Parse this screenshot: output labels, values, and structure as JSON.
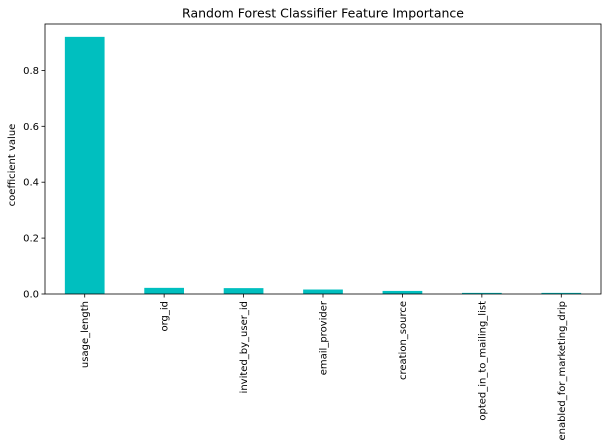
{
  "chart_data": {
    "type": "bar",
    "title": "Random Forest Classifier Feature Importance",
    "xlabel": "",
    "ylabel": "coefficient value",
    "categories": [
      "usage_length",
      "org_id",
      "invited_by_user_id",
      "email_provider",
      "creation_source",
      "opted_in_to_mailing_list",
      "enabled_for_marketing_drip"
    ],
    "values": [
      0.92,
      0.022,
      0.021,
      0.016,
      0.011,
      0.004,
      0.004
    ],
    "ylim": [
      0,
      0.966
    ],
    "yticks": [
      "0.0",
      "0.2",
      "0.4",
      "0.6",
      "0.8"
    ],
    "bar_color": "#00bfbf",
    "grid": false,
    "legend": "none"
  }
}
